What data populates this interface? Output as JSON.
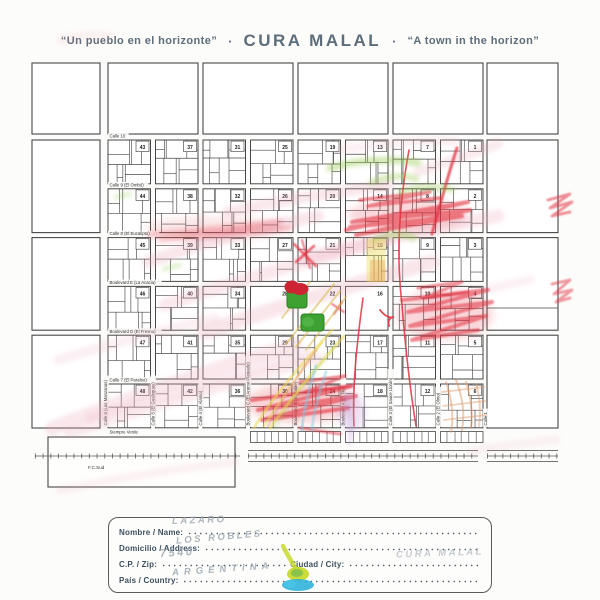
{
  "title": {
    "left_quote": "“Un pueblo en el horizonte”",
    "separator": "·",
    "main": "CURA MALAL",
    "right_quote": "“A town in the horizon”"
  },
  "map": {
    "block_rows": [
      [
        43,
        37,
        31,
        25,
        19,
        13,
        7,
        1
      ],
      [
        44,
        38,
        32,
        26,
        20,
        14,
        8,
        2
      ],
      [
        45,
        39,
        33,
        27,
        21,
        15,
        9,
        3
      ],
      [
        46,
        40,
        34,
        28,
        22,
        16,
        10,
        4
      ],
      [
        47,
        41,
        35,
        29,
        23,
        17,
        11,
        5
      ],
      [
        48,
        42,
        36,
        30,
        24,
        18,
        12,
        6
      ]
    ],
    "empty_blocks": [
      28,
      22,
      16
    ],
    "streets": {
      "horizontal": [
        "Calle 10",
        "Calle 9 (El Ombú)",
        "Calle 8 (El Eucalipto)",
        "Boulevard E (La Acacia)",
        "Boulevard D (El Fresno)",
        "Calle 7 (El Paraíso)",
        "Siempre Verde"
      ],
      "vertical": [
        "Calle 6 (Los Manzanos)",
        "Calle 5 (El Gualeguay)",
        "Calle 4 (El Álamo)",
        "Boulevard C (El Aromo Plateado)",
        "Boulevard B (El Roble)",
        "Boulevard A (El Tilo)",
        "Calle 3 (El Sauce Llorón)",
        "Calle 2 (El Olmo)",
        "Calle 1"
      ]
    },
    "railway_label": "F.C.Sud"
  },
  "form": {
    "fields": {
      "name": {
        "label": "Nombre / Name:",
        "value": "LAZARO"
      },
      "address": {
        "label": "Domicilio / Address:",
        "value": "LOS ROBLES"
      },
      "zip": {
        "label": "C.P. / Zip:",
        "value": "7540"
      },
      "city": {
        "label": "Ciudad / City:",
        "value": "CURA MALAL"
      },
      "country": {
        "label": "País / Country:",
        "value": "ARGENTINA"
      }
    }
  },
  "colors": {
    "title_text": "#5e6d7a",
    "form_text": "#3d4f5e",
    "map_line": "#474747",
    "pencil": "#98a2ac",
    "crayon_pink": "#eba6b8",
    "crayon_red": "#e23140",
    "crayon_green": "#8cc63f",
    "crayon_yellow": "#ead94f",
    "crayon_orange": "#e09a6a",
    "crayon_violet": "#b58cd6",
    "crayon_cyan": "#79c8e0",
    "paint_green": "#3da232",
    "paint_red": "#cc2433",
    "paint_lime": "#c8d92e",
    "paint_blue": "#2fb3da"
  }
}
